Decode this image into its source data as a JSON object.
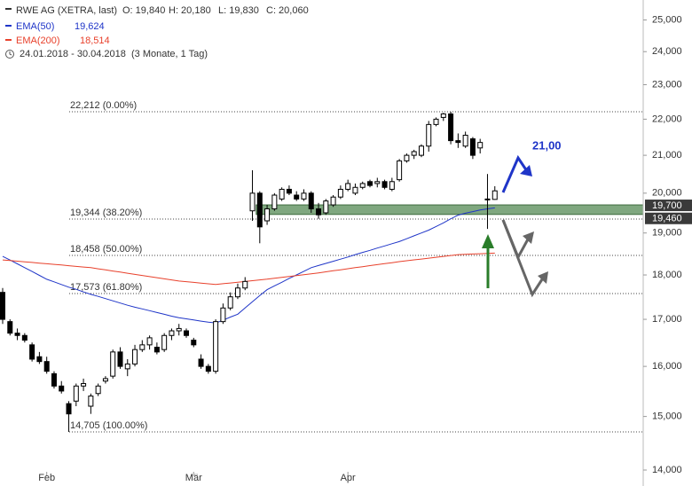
{
  "chart_data": {
    "type": "candlestick",
    "title": "RWE AG (XETRA, last)",
    "quote": [
      "O: 19,840",
      "H: 20,180",
      "L: 19,830",
      "C: 20,060"
    ],
    "period": "24.01.2018 - 30.04.2018",
    "period_note": "(3 Monate, 1 Tag)",
    "log_scale": true,
    "ylim": [
      14000,
      25000
    ],
    "yticks": [
      {
        "value": 14000,
        "label": "14,000"
      },
      {
        "value": 15000,
        "label": "15,000"
      },
      {
        "value": 16000,
        "label": "16,000"
      },
      {
        "value": 17000,
        "label": "17,000"
      },
      {
        "value": 18000,
        "label": "18,000"
      },
      {
        "value": 19000,
        "label": "19,000"
      },
      {
        "value": 20000,
        "label": "20,000"
      },
      {
        "value": 21000,
        "label": "21,000"
      },
      {
        "value": 22000,
        "label": "22,000"
      },
      {
        "value": 23000,
        "label": "23,000"
      },
      {
        "value": 24000,
        "label": "24,000"
      },
      {
        "value": 25000,
        "label": "25,000"
      }
    ],
    "categories": [
      null,
      null,
      null,
      null,
      null,
      null,
      "Feb",
      null,
      null,
      null,
      null,
      null,
      null,
      null,
      null,
      null,
      null,
      null,
      null,
      null,
      null,
      null,
      null,
      null,
      null,
      null,
      "Mär",
      null,
      null,
      null,
      null,
      null,
      null,
      null,
      null,
      null,
      null,
      null,
      null,
      null,
      null,
      null,
      null,
      null,
      null,
      null,
      null,
      "Apr",
      null,
      null,
      null,
      null,
      null,
      null,
      null,
      null,
      null,
      null,
      null,
      null,
      null,
      null,
      null,
      null,
      null,
      null,
      null,
      null
    ],
    "up_color": "#ffffff",
    "down_color": "#000000",
    "candles": {
      "open": [
        17600,
        16950,
        16700,
        16650,
        16450,
        16200,
        16100,
        15850,
        15600,
        15250,
        15300,
        15600,
        15200,
        15450,
        15700,
        15800,
        16300,
        15950,
        16050,
        16350,
        16450,
        16400,
        16350,
        16650,
        16750,
        16750,
        16550,
        16150,
        16000,
        15900,
        16950,
        17250,
        17500,
        17700,
        19550,
        20000,
        19300,
        19600,
        19850,
        20100,
        19950,
        19850,
        20000,
        19600,
        19500,
        19700,
        19900,
        20100,
        20000,
        20150,
        20300,
        20250,
        20300,
        20100,
        20350,
        20850,
        21000,
        21000,
        21250,
        21850,
        22050,
        22150,
        21400,
        21250,
        21450,
        21200,
        19850,
        19840
      ],
      "high": [
        17700,
        17000,
        16800,
        16700,
        16500,
        16300,
        16200,
        15900,
        15700,
        15300,
        15650,
        15750,
        15450,
        15650,
        15800,
        16350,
        16400,
        16150,
        16450,
        16550,
        16650,
        16500,
        16700,
        16800,
        16900,
        16800,
        16600,
        16250,
        16050,
        17000,
        17350,
        17600,
        17800,
        17950,
        20600,
        20050,
        19700,
        20000,
        20150,
        20200,
        20050,
        20100,
        20050,
        19750,
        19850,
        19950,
        20200,
        20350,
        20250,
        20300,
        20350,
        20400,
        20350,
        20400,
        20900,
        21050,
        21150,
        21300,
        21950,
        22050,
        22180,
        22212,
        21600,
        21650,
        21500,
        21450,
        20500,
        20180
      ],
      "low": [
        16900,
        16650,
        16550,
        16500,
        16100,
        16050,
        15850,
        15550,
        15450,
        14705,
        15200,
        15500,
        15050,
        15400,
        15650,
        15750,
        15950,
        15800,
        16000,
        16300,
        16350,
        16250,
        16300,
        16550,
        16650,
        16600,
        16400,
        15950,
        15850,
        15850,
        16900,
        17200,
        17450,
        17650,
        19300,
        18750,
        19200,
        19550,
        19800,
        19950,
        19800,
        19800,
        19500,
        19350,
        19450,
        19650,
        19850,
        20050,
        19950,
        20100,
        20150,
        20150,
        20100,
        20050,
        20300,
        20800,
        20900,
        20950,
        21100,
        21800,
        21950,
        21300,
        21200,
        21200,
        20900,
        21050,
        19100,
        19830
      ],
      "close": [
        17000,
        16700,
        16650,
        16550,
        16150,
        16100,
        15900,
        15600,
        15500,
        15050,
        15600,
        15650,
        15400,
        15600,
        15750,
        16300,
        16000,
        16050,
        16350,
        16450,
        16600,
        16300,
        16650,
        16750,
        16800,
        16650,
        16450,
        16000,
        15900,
        16950,
        17250,
        17500,
        17700,
        17850,
        20000,
        19150,
        19600,
        19950,
        20100,
        20000,
        19850,
        20000,
        19600,
        19450,
        19800,
        19900,
        20100,
        20250,
        20150,
        20250,
        20200,
        20300,
        20150,
        20300,
        20850,
        21000,
        21100,
        21250,
        21850,
        22000,
        22150,
        21400,
        21350,
        21550,
        21000,
        21350,
        19840,
        20060
      ]
    },
    "series": [
      {
        "name": "EMA(50)",
        "legend_value": "19,624",
        "color": "#1f35c8",
        "values": [
          18436,
          18350,
          18260,
          18170,
          18080,
          17990,
          17900,
          17840,
          17780,
          17720,
          17670,
          17610,
          17556,
          17510,
          17460,
          17410,
          17360,
          17310,
          17267,
          17230,
          17190,
          17150,
          17110,
          17070,
          17036,
          17010,
          16985,
          16960,
          16940,
          16922,
          16980,
          17050,
          17112,
          17250,
          17390,
          17530,
          17662,
          17750,
          17830,
          17920,
          18000,
          18085,
          18170,
          18220,
          18270,
          18320,
          18370,
          18420,
          18477,
          18530,
          18580,
          18635,
          18685,
          18740,
          18791,
          18860,
          18930,
          19000,
          19070,
          19160,
          19250,
          19350,
          19442,
          19490,
          19530,
          19570,
          19600,
          19624
        ]
      },
      {
        "name": "EMA(200)",
        "legend_value": "18,514",
        "color": "#e8412c",
        "values": [
          18352,
          18337,
          18322,
          18307,
          18292,
          18277,
          18262,
          18247,
          18232,
          18215,
          18200,
          18185,
          18170,
          18144,
          18118,
          18092,
          18066,
          18040,
          18014,
          17988,
          17962,
          17936,
          17910,
          17885,
          17860,
          17844,
          17828,
          17812,
          17796,
          17781,
          17798,
          17815,
          17833,
          17850,
          17867,
          17885,
          17902,
          17922,
          17943,
          17963,
          17984,
          18004,
          18025,
          18049,
          18073,
          18097,
          18121,
          18146,
          18170,
          18193,
          18217,
          18240,
          18264,
          18287,
          18311,
          18332,
          18353,
          18373,
          18394,
          18415,
          18436,
          18456,
          18477,
          18484,
          18492,
          18499,
          18507,
          18514
        ]
      }
    ],
    "levels": [
      {
        "value": 22212,
        "label": "22,212 (0.00%)"
      },
      {
        "value": 19344,
        "label": "19,344 (38.20%)"
      },
      {
        "value": 18458,
        "label": "18,458 (50.00%)"
      },
      {
        "value": 17573,
        "label": "17,573 (61.80%)"
      },
      {
        "value": 14705,
        "label": "14,705 (100.00%)"
      }
    ],
    "zone": {
      "color": "#7fa77f",
      "low": {
        "value": 19460,
        "label": "19,460"
      },
      "high": {
        "value": 19700,
        "label": "19,700"
      }
    },
    "target": {
      "value": 21000,
      "label": "21,00",
      "color": "#1f35c8"
    }
  }
}
